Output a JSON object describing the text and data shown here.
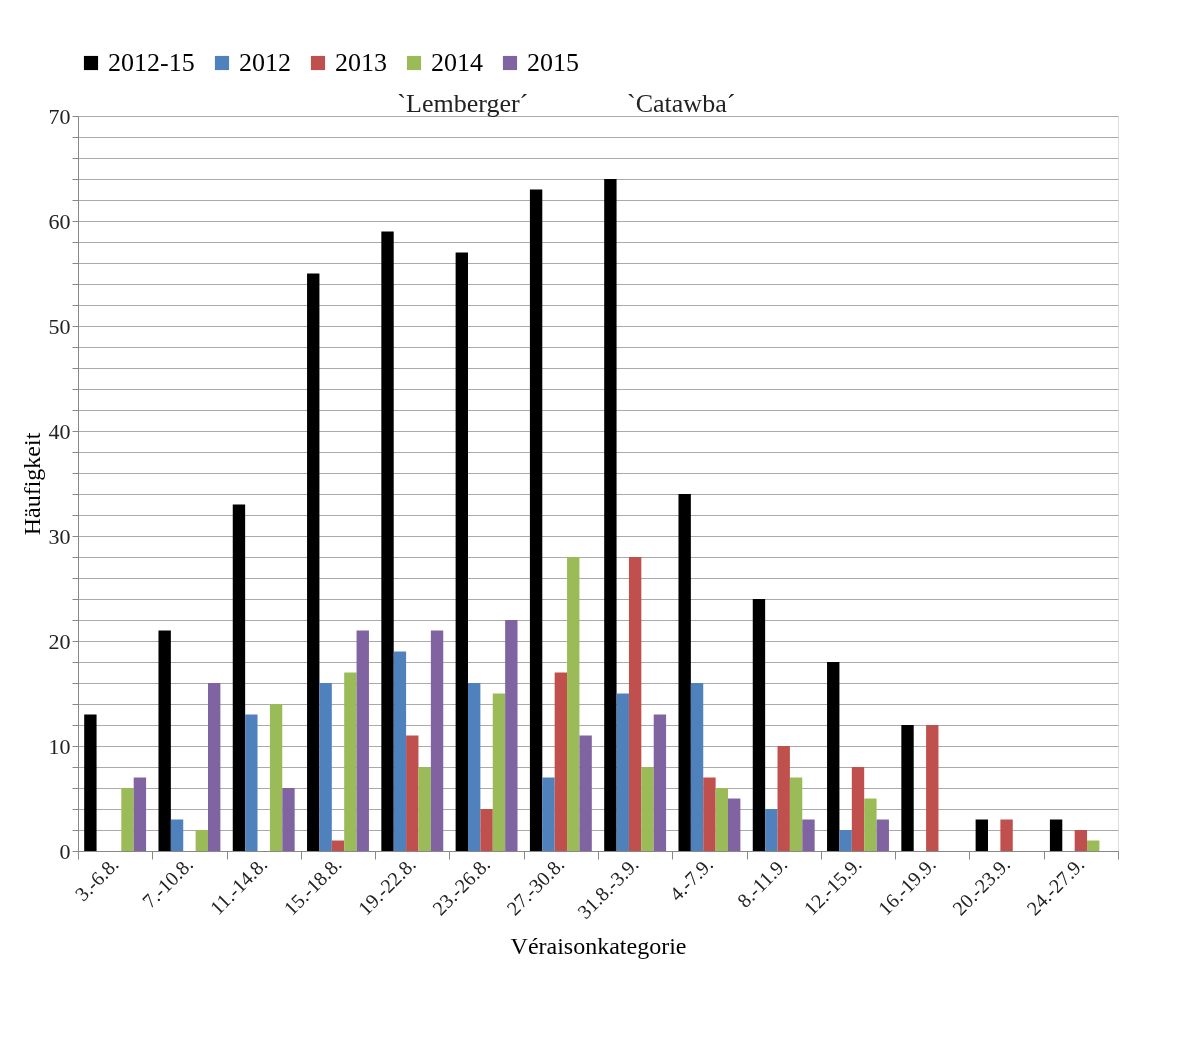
{
  "chart_data": {
    "type": "bar",
    "xlabel": "Véraisonkategorie",
    "ylabel": "Häufigkeit",
    "categories": [
      "3.-6.8.",
      "7.-10.8.",
      "11.-14.8.",
      "15.-18.8.",
      "19.-22.8.",
      "23.-26.8.",
      "27.-30.8.",
      "31.8.-3.9.",
      "4.-7.9.",
      "8.-11.9.",
      "12.-15.9.",
      "16.-19.9.",
      "20.-23.9.",
      "24.-27.9."
    ],
    "series": [
      {
        "name": "2012-15",
        "color": "#000000",
        "values": [
          13,
          21,
          33,
          55,
          59,
          57,
          63,
          64,
          34,
          24,
          18,
          12,
          3,
          3
        ]
      },
      {
        "name": "2012",
        "color": "#4f81bd",
        "values": [
          0,
          3,
          13,
          16,
          19,
          16,
          7,
          15,
          16,
          4,
          2,
          0,
          0,
          0
        ]
      },
      {
        "name": "2013",
        "color": "#c0504d",
        "values": [
          0,
          0,
          0,
          1,
          11,
          4,
          17,
          28,
          7,
          10,
          8,
          12,
          3,
          2
        ]
      },
      {
        "name": "2014",
        "color": "#9bbb59",
        "values": [
          6,
          2,
          14,
          17,
          8,
          15,
          28,
          8,
          6,
          7,
          5,
          0,
          0,
          1
        ]
      },
      {
        "name": "2015",
        "color": "#8064a2",
        "values": [
          7,
          16,
          6,
          21,
          21,
          22,
          11,
          13,
          5,
          3,
          3,
          0,
          0,
          0
        ]
      }
    ],
    "ylim": [
      0,
      70
    ],
    "yticks": [
      0,
      {
        "value": 2,
        "label": null
      },
      {
        "value": 4,
        "label": null
      },
      {
        "value": 6,
        "label": null
      },
      {
        "value": 8,
        "label": null
      },
      10,
      {
        "value": 12,
        "label": null
      },
      {
        "value": 14,
        "label": null
      },
      {
        "value": 16,
        "label": null
      },
      {
        "value": 18,
        "label": null
      },
      20,
      {
        "value": 22,
        "label": null
      },
      {
        "value": 24,
        "label": null
      },
      {
        "value": 26,
        "label": null
      },
      {
        "value": 28,
        "label": null
      },
      30,
      {
        "value": 32,
        "label": null
      },
      {
        "value": 34,
        "label": null
      },
      {
        "value": 36,
        "label": null
      },
      {
        "value": 38,
        "label": null
      },
      40,
      {
        "value": 42,
        "label": null
      },
      {
        "value": 44,
        "label": null
      },
      {
        "value": 46,
        "label": null
      },
      {
        "value": 48,
        "label": null
      },
      50,
      {
        "value": 52,
        "label": null
      },
      {
        "value": 54,
        "label": null
      },
      {
        "value": 56,
        "label": null
      },
      {
        "value": 58,
        "label": null
      },
      60,
      {
        "value": 62,
        "label": null
      },
      {
        "value": 64,
        "label": null
      },
      {
        "value": 66,
        "label": null
      },
      {
        "value": 68,
        "label": null
      },
      70
    ],
    "grid": "y",
    "legend": "top",
    "annotations": [
      "`Lemberger´",
      "`Catawba´"
    ]
  }
}
